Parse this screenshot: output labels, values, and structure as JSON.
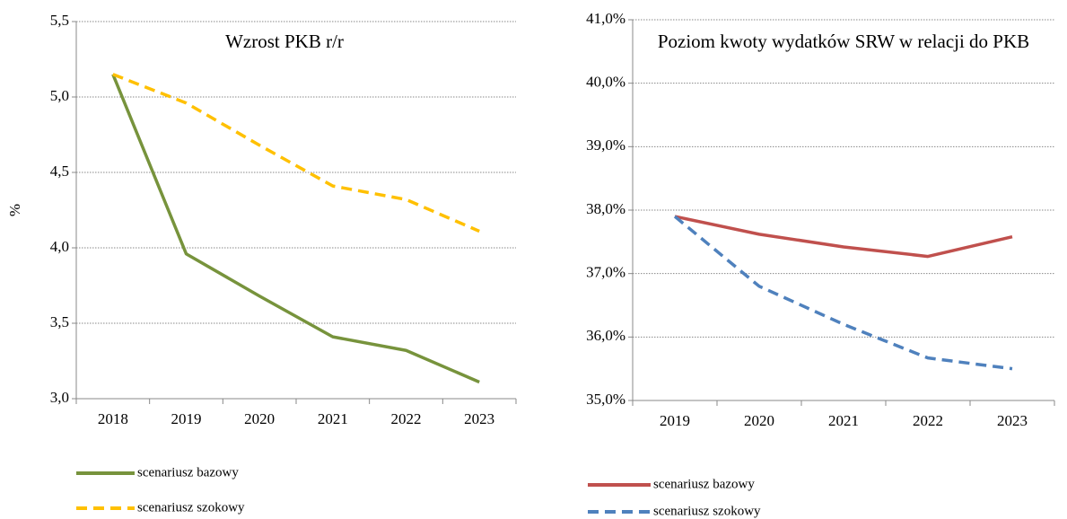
{
  "chart_data": [
    {
      "type": "line",
      "title": "Wzrost PKB r/r",
      "y_label": "%",
      "categories": [
        "2018",
        "2019",
        "2020",
        "2021",
        "2022",
        "2023"
      ],
      "ylim": [
        3.0,
        5.5
      ],
      "yticks": [
        {
          "value": 3.0,
          "label": "3,0"
        },
        {
          "value": 3.5,
          "label": "3,5"
        },
        {
          "value": 4.0,
          "label": "4,0"
        },
        {
          "value": 4.5,
          "label": "4,5"
        },
        {
          "value": 5.0,
          "label": "5,0"
        },
        {
          "value": 5.5,
          "label": "5,5"
        }
      ],
      "grid": true,
      "series": [
        {
          "name": "scenariusz bazowy",
          "color": "#77933c",
          "dashed": false,
          "values": [
            5.15,
            3.96,
            3.68,
            3.41,
            3.32,
            3.11
          ]
        },
        {
          "name": "scenariusz szokowy",
          "color": "#ffc000",
          "dashed": true,
          "values": [
            5.15,
            4.96,
            4.68,
            4.41,
            4.32,
            4.11
          ]
        }
      ]
    },
    {
      "type": "line",
      "title": "Poziom kwoty wydatków SRW w relacji do PKB",
      "categories": [
        "2019",
        "2020",
        "2021",
        "2022",
        "2023"
      ],
      "ylim": [
        35,
        41
      ],
      "yticks": [
        {
          "value": 35,
          "label": "35,0%"
        },
        {
          "value": 36,
          "label": "36,0%"
        },
        {
          "value": 37,
          "label": "37,0%"
        },
        {
          "value": 38,
          "label": "38,0%"
        },
        {
          "value": 39,
          "label": "39,0%"
        },
        {
          "value": 40,
          "label": "40,0%"
        },
        {
          "value": 41,
          "label": "41,0%"
        }
      ],
      "grid": true,
      "series": [
        {
          "name": "scenariusz bazowy",
          "color": "#c0504d",
          "dashed": false,
          "values": [
            37.9,
            37.62,
            37.42,
            37.27,
            37.58
          ]
        },
        {
          "name": "scenariusz szokowy",
          "color": "#4f81bd",
          "dashed": true,
          "values": [
            37.9,
            36.8,
            36.2,
            35.67,
            35.5
          ]
        }
      ]
    }
  ]
}
